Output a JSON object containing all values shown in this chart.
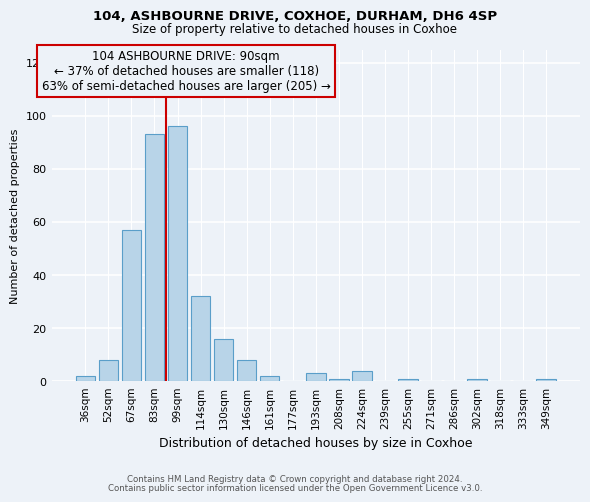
{
  "title1": "104, ASHBOURNE DRIVE, COXHOE, DURHAM, DH6 4SP",
  "title2": "Size of property relative to detached houses in Coxhoe",
  "xlabel": "Distribution of detached houses by size in Coxhoe",
  "ylabel": "Number of detached properties",
  "bar_labels": [
    "36sqm",
    "52sqm",
    "67sqm",
    "83sqm",
    "99sqm",
    "114sqm",
    "130sqm",
    "146sqm",
    "161sqm",
    "177sqm",
    "193sqm",
    "208sqm",
    "224sqm",
    "239sqm",
    "255sqm",
    "271sqm",
    "286sqm",
    "302sqm",
    "318sqm",
    "333sqm",
    "349sqm"
  ],
  "bar_values": [
    2,
    8,
    57,
    93,
    96,
    32,
    16,
    8,
    2,
    0,
    3,
    1,
    4,
    0,
    1,
    0,
    0,
    1,
    0,
    0,
    1
  ],
  "bar_color": "#b8d4e8",
  "bar_edge_color": "#5a9ec9",
  "vline_color": "#cc0000",
  "annotation_text": "104 ASHBOURNE DRIVE: 90sqm\n← 37% of detached houses are smaller (118)\n63% of semi-detached houses are larger (205) →",
  "annotation_box_edge": "#cc0000",
  "ylim": [
    0,
    125
  ],
  "yticks": [
    0,
    20,
    40,
    60,
    80,
    100,
    120
  ],
  "footer1": "Contains HM Land Registry data © Crown copyright and database right 2024.",
  "footer2": "Contains public sector information licensed under the Open Government Licence v3.0.",
  "bg_color": "#edf2f8"
}
